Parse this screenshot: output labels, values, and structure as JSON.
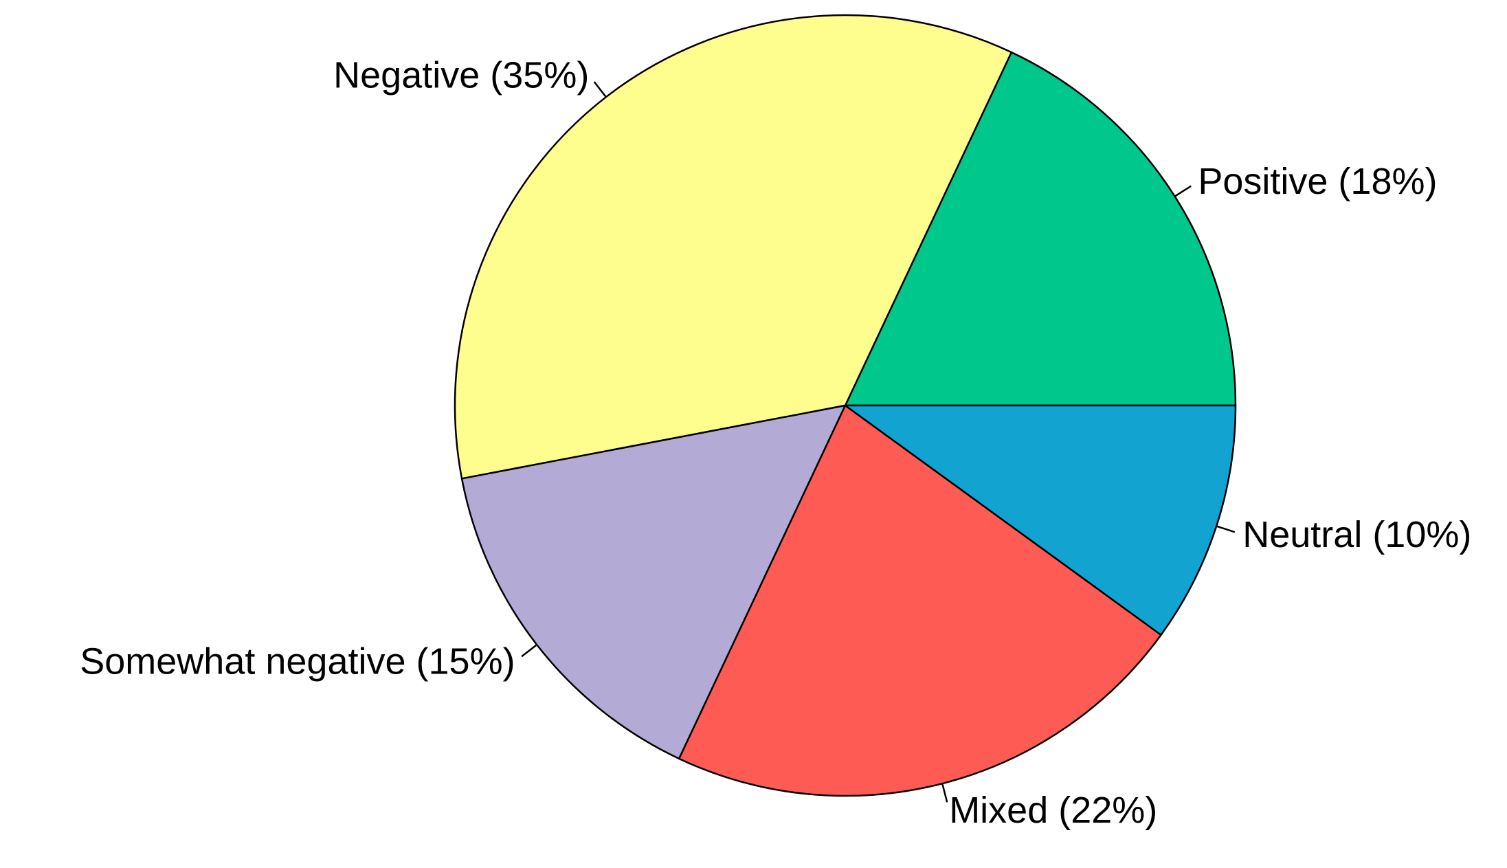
{
  "chart_data": {
    "type": "pie",
    "title": "",
    "start_angle_deg": 0,
    "direction": "counterclockwise",
    "slices": [
      {
        "label": "Positive (18%)",
        "value": 18,
        "color": "#00c88c"
      },
      {
        "label": "Negative (35%)",
        "value": 35,
        "color": "#fefe8f"
      },
      {
        "label": "Somewhat negative (15%)",
        "value": 15,
        "color": "#b4aad6"
      },
      {
        "label": "Mixed (22%)",
        "value": 22,
        "color": "#ff5b55"
      },
      {
        "label": "Neutral (10%)",
        "value": 10,
        "color": "#13a3d1"
      }
    ],
    "legend": "none",
    "labels": "outside with leader lines"
  }
}
